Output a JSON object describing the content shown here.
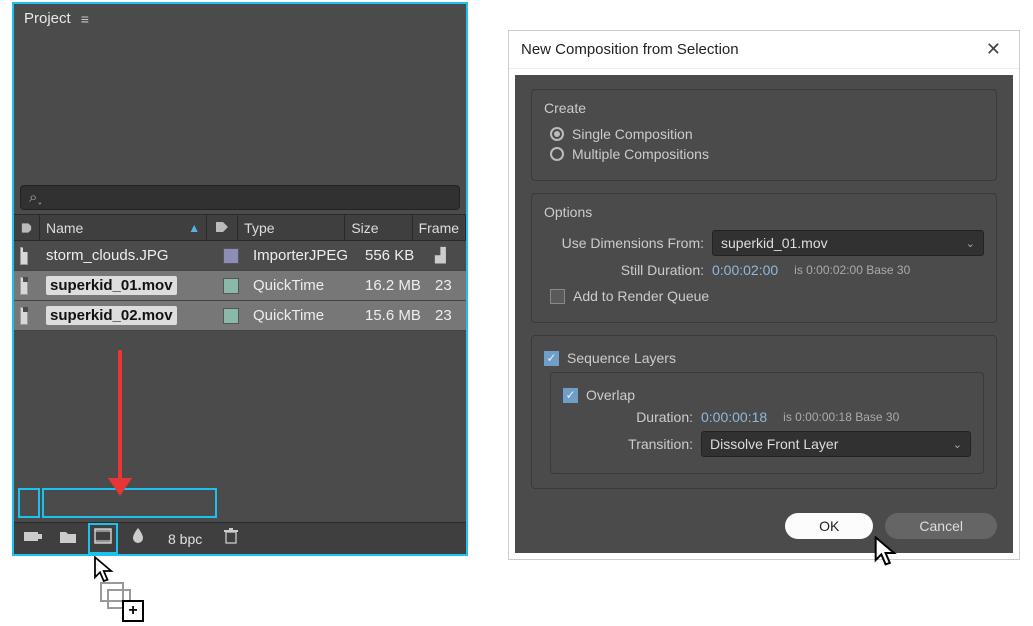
{
  "project_panel": {
    "title": "Project",
    "header_bg": "#4b4b4b",
    "search_placeholder": "ℓ",
    "columns": {
      "name": "Name",
      "type": "Type",
      "size": "Size",
      "frame": "Frame"
    },
    "rows": [
      {
        "name": "storm_clouds.JPG",
        "type": "ImporterJPEG",
        "size": "556 KB",
        "frame": "",
        "swatch": "#8d8db8",
        "selected": false,
        "used": true
      },
      {
        "name": "superkid_01.mov",
        "type": "QuickTime",
        "size": "16.2 MB",
        "frame": "23",
        "swatch": "#8ab8a9",
        "selected": true,
        "used": false
      },
      {
        "name": "superkid_02.mov",
        "type": "QuickTime",
        "size": "15.6 MB",
        "frame": "23",
        "swatch": "#8ab8a9",
        "selected": true,
        "used": false
      }
    ],
    "footer": {
      "bpc_label": "8 bpc"
    }
  },
  "dialog": {
    "title": "New Composition from Selection",
    "create": {
      "group_label": "Create",
      "single": "Single Composition",
      "multiple": "Multiple Compositions",
      "selected": "single"
    },
    "options": {
      "group_label": "Options",
      "use_dims_label": "Use Dimensions From:",
      "use_dims_value": "superkid_01.mov",
      "still_dur_label": "Still Duration:",
      "still_dur_value": "0:00:02:00",
      "still_dur_hint": "is 0:00:02:00  Base 30",
      "add_render_queue": "Add to Render Queue",
      "add_render_queue_checked": false
    },
    "sequence": {
      "label": "Sequence Layers",
      "checked": true,
      "overlap_label": "Overlap",
      "overlap_checked": true,
      "duration_label": "Duration:",
      "duration_value": "0:00:00:18",
      "duration_hint": "is 0:00:00:18  Base 30",
      "transition_label": "Transition:",
      "transition_value": "Dissolve Front Layer"
    },
    "buttons": {
      "ok": "OK",
      "cancel": "Cancel"
    }
  },
  "colors": {
    "panel_bg": "#4b4b4b",
    "highlight": "#1dc1f0",
    "arrow": "#e83535",
    "link_text": "#8fb8dc",
    "dialog_bg": "#ffffff",
    "input_bg": "#313131"
  }
}
